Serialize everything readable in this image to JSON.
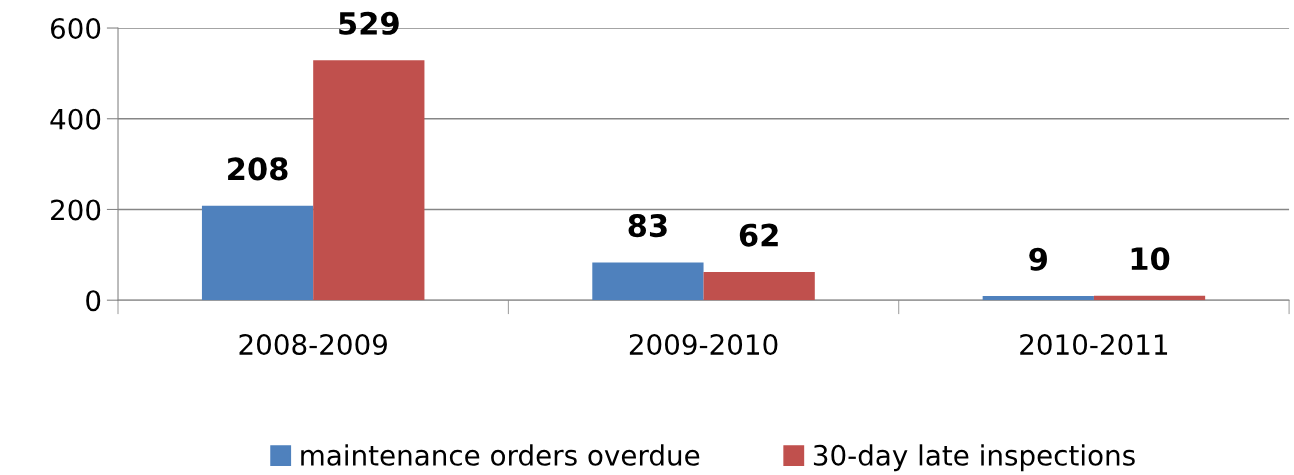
{
  "chart_data": {
    "type": "bar",
    "categories": [
      "2008-2009",
      "2009-2010",
      "2010-2011"
    ],
    "series": [
      {
        "name": "maintenance orders overdue",
        "color": "#4f81bd",
        "values": [
          208,
          83,
          9
        ]
      },
      {
        "name": "30-day late inspections",
        "color": "#c0504d",
        "values": [
          529,
          62,
          10
        ]
      }
    ],
    "ylim": [
      0,
      600
    ],
    "yticks": [
      0,
      200,
      400,
      600
    ],
    "grid": "y",
    "legend": "bottom",
    "data_labels": true
  }
}
